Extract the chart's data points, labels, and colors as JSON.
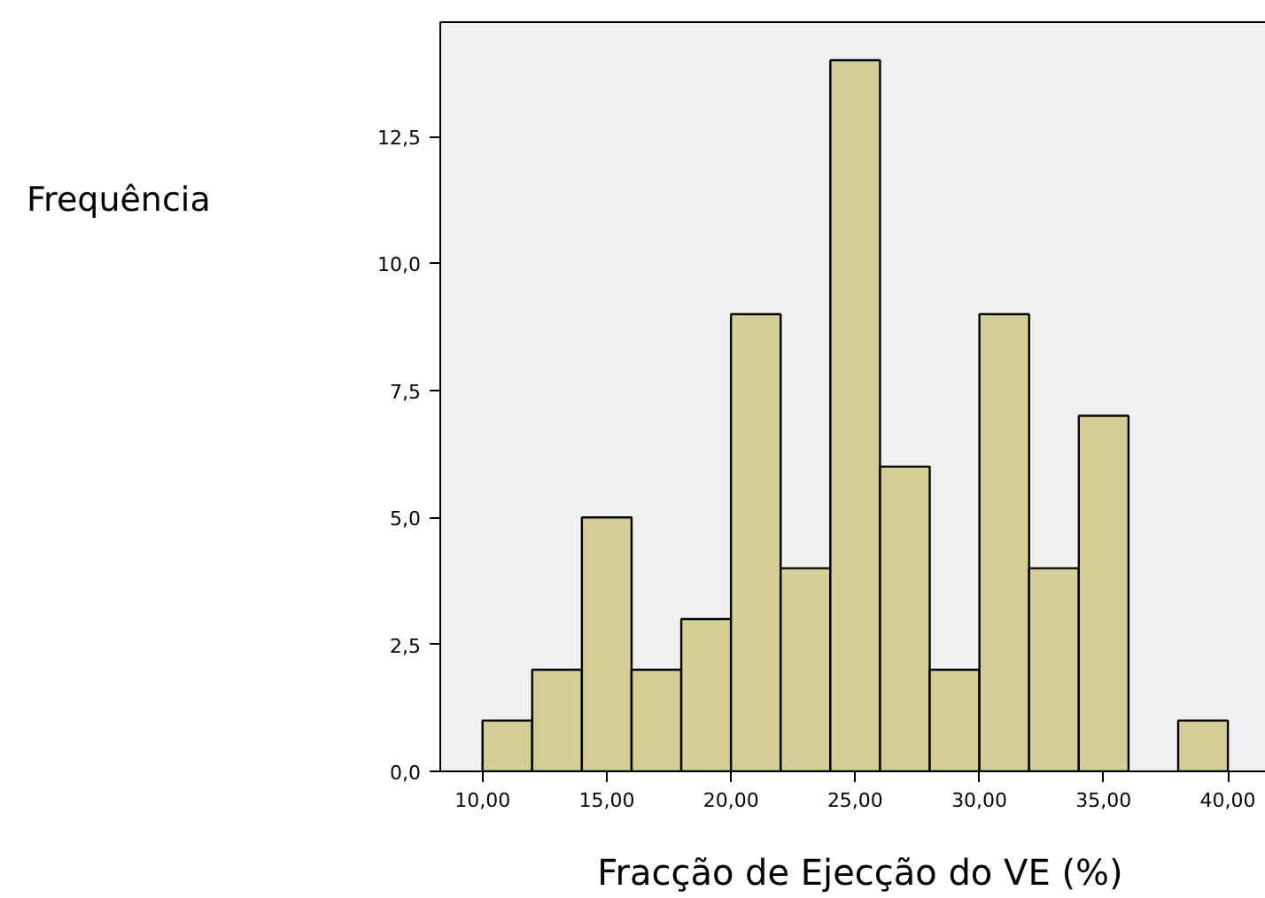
{
  "chart_data": {
    "type": "histogram",
    "xlabel": "Fracção de Ejecção do VE (%)",
    "ylabel": "Frequência",
    "bins": [
      10,
      12,
      14,
      16,
      18,
      20,
      22,
      24,
      26,
      28,
      30,
      32,
      34,
      36,
      38,
      40
    ],
    "values": [
      1,
      2,
      5,
      2,
      3,
      9,
      4,
      14,
      6,
      2,
      9,
      4,
      7,
      0,
      1
    ],
    "color": "#d3ce97",
    "xlim": [
      8.3,
      42.1
    ],
    "ylim": [
      0,
      14.75
    ],
    "xticks": [
      {
        "value": 10,
        "label": "10,00"
      },
      {
        "value": 15,
        "label": "15,00"
      },
      {
        "value": 20,
        "label": "20,00"
      },
      {
        "value": 25,
        "label": "25,00"
      },
      {
        "value": 30,
        "label": "30,00"
      },
      {
        "value": 35,
        "label": "35,00"
      },
      {
        "value": 40,
        "label": "40,00"
      }
    ],
    "yticks": [
      {
        "value": 0,
        "label": "0,0"
      },
      {
        "value": 2.5,
        "label": "2,5"
      },
      {
        "value": 5,
        "label": "5,0"
      },
      {
        "value": 7.5,
        "label": "7,5"
      },
      {
        "value": 10,
        "label": "10,0"
      },
      {
        "value": 12.5,
        "label": "12,5"
      }
    ],
    "grid": false
  }
}
